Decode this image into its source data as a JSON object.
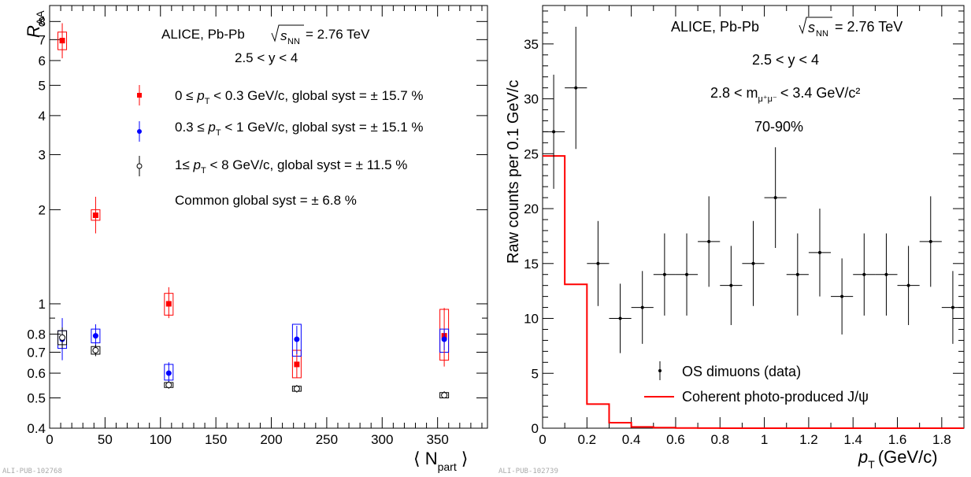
{
  "chart_data": [
    {
      "type": "scatter",
      "yscale": "log",
      "ylabel_main": "R",
      "ylabel_sub": "AA",
      "xlabel_pre": "⟨ N",
      "xlabel_sub": "part",
      "xlabel_post": "⟩",
      "xlim": [
        0,
        395
      ],
      "ylim": [
        0.4,
        9
      ],
      "xticks": [
        0,
        50,
        100,
        150,
        200,
        250,
        300,
        350
      ],
      "yticks": [
        {
          "v": 0.4,
          "label": "0.4"
        },
        {
          "v": 0.5,
          "label": "0.5"
        },
        {
          "v": 0.6,
          "label": "0.6"
        },
        {
          "v": 0.7,
          "label": "0.7"
        },
        {
          "v": 0.8,
          "label": "0.8"
        },
        {
          "v": 1,
          "label": "1"
        },
        {
          "v": 2,
          "label": "2"
        },
        {
          "v": 3,
          "label": "3"
        },
        {
          "v": 4,
          "label": "4"
        },
        {
          "v": 5,
          "label": "5"
        },
        {
          "v": 6,
          "label": "6"
        },
        {
          "v": 7,
          "label": "7"
        },
        {
          "v": 8,
          "label": "8"
        }
      ],
      "texts": {
        "experiment": "ALICE, Pb-Pb",
        "energy": "= 2.76 TeV",
        "rapidity": "2.5 < y < 4",
        "common_syst": "Common global syst = ± 6.8 %",
        "pub_id": "ALI-PUB-102768"
      },
      "series": [
        {
          "legend_pre": "0 ≤",
          "legend_post": "< 0.3 GeV/c, global syst = ± 15.7 %",
          "color": "#ff0000",
          "marker": "filled-square",
          "points": [
            {
              "x": 11.4,
              "y": 6.95,
              "el": 6.1,
              "eh": 7.9,
              "sl": 6.5,
              "sh": 7.4
            },
            {
              "x": 41.5,
              "y": 1.92,
              "el": 1.68,
              "eh": 2.2,
              "sl": 1.85,
              "sh": 2.0
            },
            {
              "x": 107.5,
              "y": 1.0,
              "el": 0.9,
              "eh": 1.13,
              "sl": 0.92,
              "sh": 1.08
            },
            {
              "x": 223,
              "y": 0.64,
              "el": 0.58,
              "eh": 0.71,
              "sl": 0.58,
              "sh": 0.71
            },
            {
              "x": 356,
              "y": 0.79,
              "el": 0.63,
              "eh": 0.97,
              "sl": 0.66,
              "sh": 0.96
            }
          ]
        },
        {
          "legend_pre": "0.3 ≤",
          "legend_post": "< 1 GeV/c, global syst = ± 15.1 %",
          "color": "#0000ff",
          "marker": "filled-circle",
          "points": [
            {
              "x": 11.4,
              "y": 0.77,
              "el": 0.66,
              "eh": 0.9,
              "sl": 0.72,
              "sh": 0.82
            },
            {
              "x": 41.5,
              "y": 0.79,
              "el": 0.73,
              "eh": 0.86,
              "sl": 0.75,
              "sh": 0.83
            },
            {
              "x": 107.5,
              "y": 0.6,
              "el": 0.56,
              "eh": 0.65,
              "sl": 0.57,
              "sh": 0.64
            },
            {
              "x": 223,
              "y": 0.77,
              "el": 0.69,
              "eh": 0.85,
              "sl": 0.68,
              "sh": 0.86
            },
            {
              "x": 356,
              "y": 0.77,
              "el": 0.71,
              "eh": 0.83,
              "sl": 0.7,
              "sh": 0.83
            }
          ]
        },
        {
          "legend_pre": "1≤",
          "legend_post": "< 8 GeV/c, global syst = ± 11.5 %",
          "color": "#000000",
          "marker": "open-circle",
          "points": [
            {
              "x": 11.4,
              "y": 0.78,
              "el": 0.72,
              "eh": 0.84,
              "sl": 0.74,
              "sh": 0.82
            },
            {
              "x": 41.5,
              "y": 0.71,
              "el": 0.68,
              "eh": 0.74,
              "sl": 0.69,
              "sh": 0.73
            },
            {
              "x": 107.5,
              "y": 0.55,
              "el": 0.535,
              "eh": 0.565,
              "sl": 0.54,
              "sh": 0.56
            },
            {
              "x": 223,
              "y": 0.535,
              "el": 0.52,
              "eh": 0.55,
              "sl": 0.525,
              "sh": 0.545
            },
            {
              "x": 356,
              "y": 0.51,
              "el": 0.5,
              "eh": 0.525,
              "sl": 0.5,
              "sh": 0.52
            }
          ]
        }
      ]
    },
    {
      "type": "histogram",
      "ylabel": "Raw counts per 0.1 GeV/c",
      "xlabel_main": "p",
      "xlabel_sub": "T",
      "xlabel_unit": "(GeV/c)",
      "xlim": [
        0,
        1.9
      ],
      "ylim": [
        0,
        38.5
      ],
      "xticks": [
        0,
        0.2,
        0.4,
        0.6,
        0.8,
        1,
        1.2,
        1.4,
        1.6,
        1.8
      ],
      "yticks": [
        0,
        5,
        10,
        15,
        20,
        25,
        30,
        35
      ],
      "texts": {
        "experiment": "ALICE, Pb-Pb",
        "energy": "= 2.76 TeV",
        "rapidity": "2.5 < y < 4",
        "mass_pre": "2.8 < m",
        "mass_sub": "μ⁺μ⁻",
        "mass_post": "< 3.4 GeV/c²",
        "centrality": "70-90%",
        "pub_id": "ALI-PUB-102739"
      },
      "data": {
        "name": "OS dimuons (data)",
        "bin_width": 0.1,
        "centers": [
          0.05,
          0.15,
          0.25,
          0.35,
          0.45,
          0.55,
          0.65,
          0.75,
          0.85,
          0.95,
          1.05,
          1.15,
          1.25,
          1.35,
          1.45,
          1.55,
          1.65,
          1.75,
          1.85
        ],
        "values": [
          27,
          31,
          15,
          10,
          11,
          14,
          14,
          17,
          13,
          15,
          21,
          14,
          16,
          12,
          14,
          14,
          13,
          17,
          11
        ]
      },
      "model": {
        "name": "Coherent photo-produced J/ψ",
        "color": "#ff0000",
        "edges": [
          0.1,
          0.2,
          0.3,
          0.4,
          0.5,
          0.6,
          0.7,
          0.8,
          0.9,
          1.0,
          1.1,
          1.2,
          1.3,
          1.4,
          1.5,
          1.6,
          1.7,
          1.8,
          1.9
        ],
        "values": [
          24.8,
          13.1,
          2.2,
          0.5,
          0.12,
          0.05,
          0.02,
          0.01,
          0,
          0,
          0,
          0,
          0,
          0,
          0,
          0,
          0,
          0,
          0
        ]
      }
    }
  ]
}
